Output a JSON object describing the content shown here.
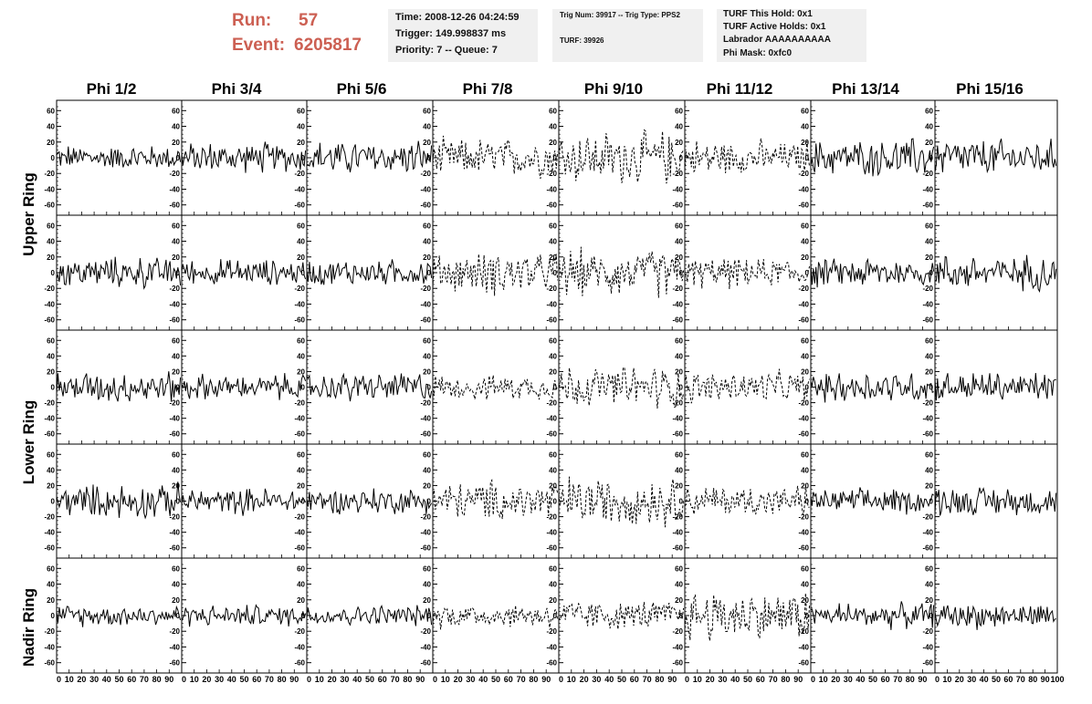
{
  "header": {
    "run_label": "Run:",
    "run_value": "57",
    "event_label": "Event:",
    "event_value": "6205817"
  },
  "time_box": {
    "time": "Time: 2008-12-26 04:24:59",
    "trigger": "Trigger: 149.998837 ms",
    "priority": "Priority: 7 -- Queue: 7"
  },
  "trig_box": {
    "trig_num": "Trig Num: 39917 -- Trig Type: PPS2",
    "turf": "TURF: 39926"
  },
  "turf_box": {
    "this_hold": "TURF This Hold: 0x1",
    "active_holds": "TURF Active Holds: 0x1",
    "labrador": "Labrador AAAAAAAAAA",
    "phi_mask": "Phi Mask: 0xfc0"
  },
  "columns": [
    "Phi 1/2",
    "Phi 3/4",
    "Phi 5/6",
    "Phi 7/8",
    "Phi 9/10",
    "Phi 11/12",
    "Phi 13/14",
    "Phi 15/16"
  ],
  "rings": {
    "upper": "Upper Ring",
    "lower": "Lower Ring",
    "nadir": "Nadir Ring"
  },
  "chart_data": {
    "type": "line",
    "title": "",
    "xlabel": "",
    "ylabel": "",
    "xlim": [
      0,
      100
    ],
    "ylim": [
      -65,
      65
    ],
    "x_ticks": [
      0,
      10,
      20,
      30,
      40,
      50,
      60,
      70,
      80,
      90,
      100
    ],
    "y_ticks": [
      -60,
      -40,
      -20,
      0,
      20,
      40,
      60
    ],
    "grid": "off",
    "rows": 5,
    "cols": 8,
    "dashed_columns": [
      3,
      4,
      5
    ],
    "amplitude": [
      [
        15,
        18,
        20,
        22,
        30,
        20,
        22,
        22
      ],
      [
        18,
        15,
        15,
        25,
        28,
        18,
        18,
        20
      ],
      [
        18,
        15,
        18,
        15,
        25,
        18,
        18,
        18
      ],
      [
        20,
        15,
        15,
        25,
        28,
        18,
        15,
        18
      ],
      [
        12,
        12,
        12,
        15,
        18,
        30,
        15,
        15
      ]
    ],
    "samples_per_trace": 96
  }
}
